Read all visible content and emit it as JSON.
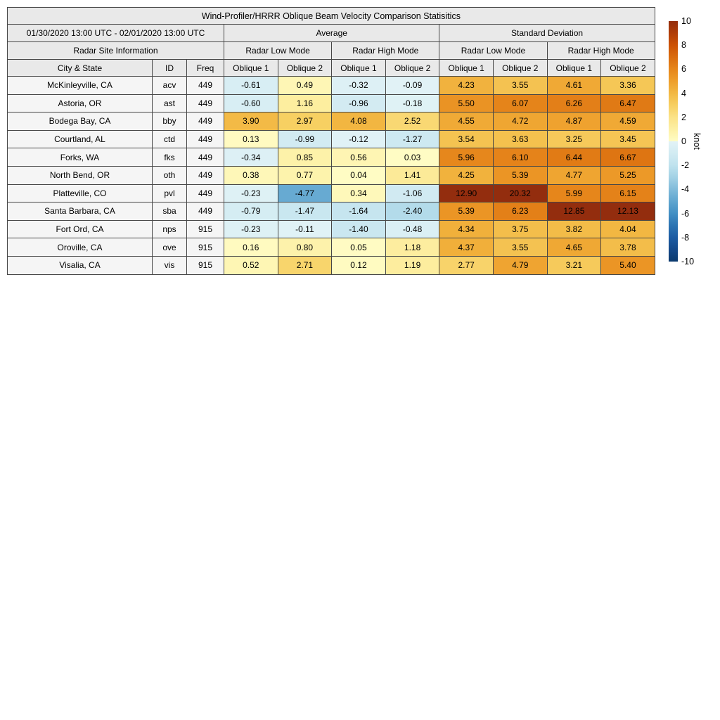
{
  "chart_data": {
    "type": "heatmap",
    "title": "Wind-Profiler/HRRR Oblique Beam Velocity Comparison Statisitics",
    "date_range": "01/30/2020 13:00 UTC - 02/01/2020 13:00 UTC",
    "site_info_header": "Radar Site Information",
    "group_headers": {
      "average": "Average",
      "stddev": "Standard Deviation"
    },
    "mode_headers": [
      "Radar Low Mode",
      "Radar High Mode",
      "Radar Low Mode",
      "Radar High Mode"
    ],
    "columns": [
      "City & State",
      "ID",
      "Freq",
      "Oblique 1",
      "Oblique 2",
      "Oblique 1",
      "Oblique 2",
      "Oblique 1",
      "Oblique 2",
      "Oblique 1",
      "Oblique 2"
    ],
    "rows": [
      {
        "city": "McKinleyville, CA",
        "id": "acv",
        "freq": "449",
        "values": [
          -0.61,
          0.49,
          -0.32,
          -0.09,
          4.23,
          3.55,
          4.61,
          3.36
        ]
      },
      {
        "city": "Astoria, OR",
        "id": "ast",
        "freq": "449",
        "values": [
          -0.6,
          1.16,
          -0.96,
          -0.18,
          5.5,
          6.07,
          6.26,
          6.47
        ]
      },
      {
        "city": "Bodega Bay, CA",
        "id": "bby",
        "freq": "449",
        "values": [
          3.9,
          2.97,
          4.08,
          2.52,
          4.55,
          4.72,
          4.87,
          4.59
        ]
      },
      {
        "city": "Courtland, AL",
        "id": "ctd",
        "freq": "449",
        "values": [
          0.13,
          -0.99,
          -0.12,
          -1.27,
          3.54,
          3.63,
          3.25,
          3.45
        ]
      },
      {
        "city": "Forks, WA",
        "id": "fks",
        "freq": "449",
        "values": [
          -0.34,
          0.85,
          0.56,
          0.03,
          5.96,
          6.1,
          6.44,
          6.67
        ]
      },
      {
        "city": "North Bend, OR",
        "id": "oth",
        "freq": "449",
        "values": [
          0.38,
          0.77,
          0.04,
          1.41,
          4.25,
          5.39,
          4.77,
          5.25
        ]
      },
      {
        "city": "Platteville, CO",
        "id": "pvl",
        "freq": "449",
        "values": [
          -0.23,
          -4.77,
          0.34,
          -1.06,
          12.9,
          20.32,
          5.99,
          6.15
        ]
      },
      {
        "city": "Santa Barbara, CA",
        "id": "sba",
        "freq": "449",
        "values": [
          -0.79,
          -1.47,
          -1.64,
          -2.4,
          5.39,
          6.23,
          12.85,
          12.13
        ]
      },
      {
        "city": "Fort Ord, CA",
        "id": "nps",
        "freq": "915",
        "values": [
          -0.23,
          -0.11,
          -1.4,
          -0.48,
          4.34,
          3.75,
          3.82,
          4.04
        ]
      },
      {
        "city": "Oroville, CA",
        "id": "ove",
        "freq": "915",
        "values": [
          0.16,
          0.8,
          0.05,
          1.18,
          4.37,
          3.55,
          4.65,
          3.78
        ]
      },
      {
        "city": "Visalia, CA",
        "id": "vis",
        "freq": "915",
        "values": [
          0.52,
          2.71,
          0.12,
          1.19,
          2.77,
          4.79,
          3.21,
          5.4
        ]
      }
    ],
    "colorbar": {
      "label": "knot",
      "vmin": -10,
      "vmax": 10,
      "ticks": [
        10,
        8,
        6,
        4,
        2,
        0,
        -2,
        -4,
        -6,
        -8,
        -10
      ]
    },
    "colormap": {
      "positive_stops": [
        {
          "v": 0,
          "c": "#FFFCC5"
        },
        {
          "v": 1,
          "c": "#FDF0A4"
        },
        {
          "v": 2,
          "c": "#FBE287"
        },
        {
          "v": 3,
          "c": "#F7CF61"
        },
        {
          "v": 4,
          "c": "#F2B843"
        },
        {
          "v": 5,
          "c": "#EE9F2C"
        },
        {
          "v": 6,
          "c": "#E6861B"
        },
        {
          "v": 7,
          "c": "#DA6C0E"
        },
        {
          "v": 8,
          "c": "#CC5205"
        },
        {
          "v": 9,
          "c": "#B03D07"
        },
        {
          "v": 10,
          "c": "#932D0E"
        }
      ],
      "negative_stops": [
        {
          "v": -10,
          "c": "#0C3A6E"
        },
        {
          "v": -9,
          "c": "#14498A"
        },
        {
          "v": -8,
          "c": "#1D5CA3"
        },
        {
          "v": -7,
          "c": "#2C74B3"
        },
        {
          "v": -6,
          "c": "#428FC4"
        },
        {
          "v": -5,
          "c": "#5FA5CF"
        },
        {
          "v": -4,
          "c": "#80BBDA"
        },
        {
          "v": -3,
          "c": "#A2D1E5"
        },
        {
          "v": -2,
          "c": "#BFE2EE"
        },
        {
          "v": -1,
          "c": "#D2EBF2"
        },
        {
          "v": 0,
          "c": "#E2F3F6"
        }
      ]
    },
    "value_decimals": 2
  }
}
